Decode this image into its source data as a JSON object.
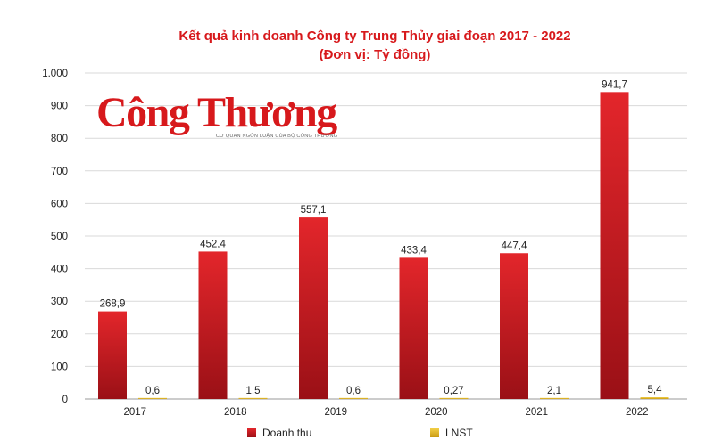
{
  "logo": {
    "text": "Công Thương",
    "tagline": "CƠ QUAN NGÔN LUẬN CỦA BỘ CÔNG THƯƠNG"
  },
  "colors": {
    "revenue": "#d7191c",
    "revenue_dark": "#8e0f13",
    "profit": "#e8b923",
    "title": "#d7191c",
    "grid": "#d9d9d9"
  },
  "chart_data": {
    "type": "bar",
    "title": "Kết quả kinh doanh Công ty Trung Thủy giai đoạn 2017 - 2022",
    "subtitle": "(Đơn vị: Tỷ đồng)",
    "categories": [
      "2017",
      "2018",
      "2019",
      "2020",
      "2021",
      "2022"
    ],
    "series": [
      {
        "name": "Doanh thu",
        "values": [
          268.9,
          452.4,
          557.1,
          433.4,
          447.4,
          941.7
        ],
        "labels": [
          "268,9",
          "452,4",
          "557,1",
          "433,4",
          "447,4",
          "941,7"
        ]
      },
      {
        "name": "LNST",
        "values": [
          0.6,
          1.5,
          0.6,
          0.27,
          2.1,
          5.4
        ],
        "labels": [
          "0,6",
          "1,5",
          "0,6",
          "0,27",
          "2,1",
          "5,4"
        ]
      }
    ],
    "yticks": [
      0,
      100,
      200,
      300,
      400,
      500,
      600,
      700,
      800,
      900,
      1000
    ],
    "ytick_labels": [
      "0",
      "100",
      "200",
      "300",
      "400",
      "500",
      "600",
      "700",
      "800",
      "900",
      "1.000"
    ],
    "ylim": [
      0,
      1000
    ],
    "grid": true,
    "legend_position": "bottom"
  }
}
